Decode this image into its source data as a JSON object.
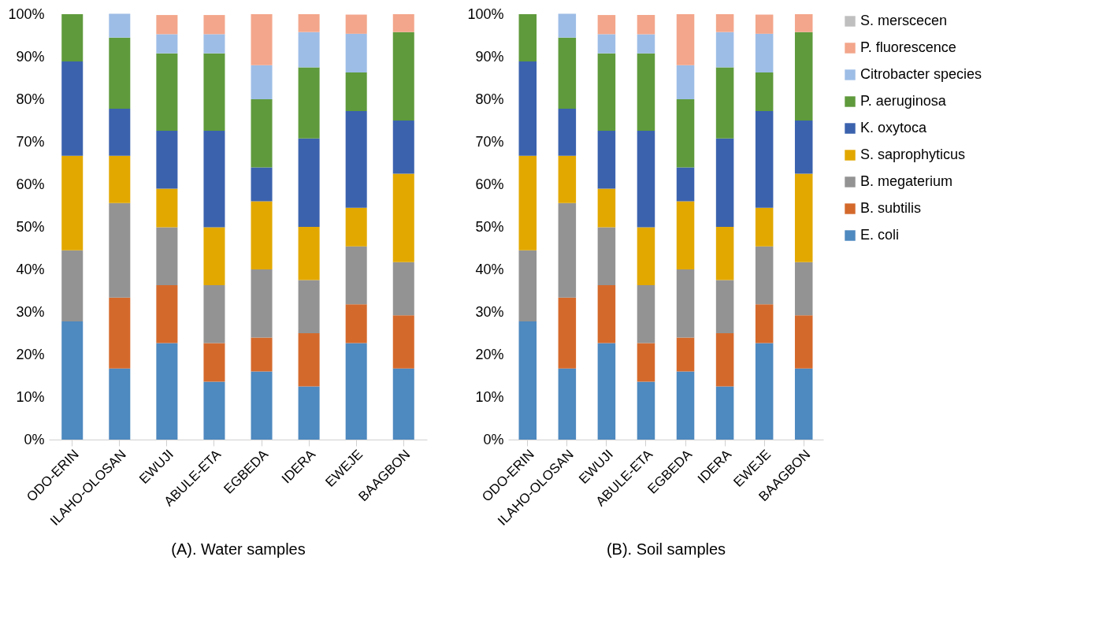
{
  "chart_data": [
    {
      "type": "bar",
      "stacked": true,
      "xlabel": "(A). Water samples",
      "categories": [
        "ODO-ERIN",
        "ILAHO-OLOSAN",
        "EWUJI",
        "ABULE-ETA",
        "EGBEDA",
        "IDERA",
        "EWEJE",
        "BAAGBON"
      ],
      "ylim": [
        0,
        100
      ],
      "yticks": [
        {
          "value": 0,
          "label": "0%"
        },
        {
          "value": 10,
          "label": "10%"
        },
        {
          "value": 20,
          "label": "20%"
        },
        {
          "value": 30,
          "label": "30%"
        },
        {
          "value": 40,
          "label": "40%"
        },
        {
          "value": 50,
          "label": "50%"
        },
        {
          "value": 60,
          "label": "60%"
        },
        {
          "value": 70,
          "label": "70%"
        },
        {
          "value": 80,
          "label": "80%"
        },
        {
          "value": 90,
          "label": "90%"
        },
        {
          "value": 100,
          "label": "100%"
        }
      ],
      "grid": false,
      "legend": false,
      "series": [
        {
          "color": "#4e89bf",
          "values": [
            27.8,
            16.7,
            22.7,
            13.6,
            16,
            12.5,
            22.7,
            16.7
          ]
        },
        {
          "color": "#d4692c",
          "values": [
            0,
            16.7,
            13.6,
            9.1,
            8,
            12.5,
            9.1,
            12.5
          ]
        },
        {
          "color": "#939393",
          "values": [
            16.7,
            22.2,
            13.6,
            13.6,
            16,
            12.5,
            13.6,
            12.5
          ]
        },
        {
          "color": "#e2a800",
          "values": [
            22.2,
            11.1,
            9.1,
            13.6,
            16,
            12.5,
            9.1,
            20.8
          ]
        },
        {
          "color": "#3b62ad",
          "values": [
            22.2,
            11.1,
            13.6,
            22.7,
            8,
            20.8,
            22.7,
            12.5
          ]
        },
        {
          "color": "#5f9a3c",
          "values": [
            11.1,
            16.7,
            18.2,
            18.2,
            16,
            16.7,
            9.1,
            20.8
          ]
        },
        {
          "color": "#9dbde6",
          "values": [
            0,
            5.6,
            4.5,
            4.5,
            8,
            8.3,
            9.1,
            0
          ]
        },
        {
          "color": "#f3a68b",
          "values": [
            0,
            0,
            4.5,
            4.5,
            12,
            4.2,
            4.5,
            4.2
          ]
        },
        {
          "color": "#bfbfbf",
          "values": [
            0,
            0,
            0,
            0,
            0,
            0,
            0,
            0
          ]
        }
      ]
    },
    {
      "type": "bar",
      "stacked": true,
      "xlabel": "(B). Soil samples",
      "categories": [
        "ODO-ERIN",
        "ILAHO-OLOSAN",
        "EWUJI",
        "ABULE-ETA",
        "EGBEDA",
        "IDERA",
        "EWEJE",
        "BAAGBON"
      ],
      "ylim": [
        0,
        100
      ],
      "yticks": [
        {
          "value": 0,
          "label": "0%"
        },
        {
          "value": 10,
          "label": "10%"
        },
        {
          "value": 20,
          "label": "20%"
        },
        {
          "value": 30,
          "label": "30%"
        },
        {
          "value": 40,
          "label": "40%"
        },
        {
          "value": 50,
          "label": "50%"
        },
        {
          "value": 60,
          "label": "60%"
        },
        {
          "value": 70,
          "label": "70%"
        },
        {
          "value": 80,
          "label": "80%"
        },
        {
          "value": 90,
          "label": "90%"
        },
        {
          "value": 100,
          "label": "100%"
        }
      ],
      "grid": false,
      "legend": "right",
      "series": [
        {
          "name": "E. coli",
          "color": "#4e89bf",
          "values": [
            27.8,
            16.7,
            22.7,
            13.6,
            16,
            12.5,
            22.7,
            16.7
          ]
        },
        {
          "name": "B. subtilis",
          "color": "#d4692c",
          "values": [
            0,
            16.7,
            13.6,
            9.1,
            8,
            12.5,
            9.1,
            12.5
          ]
        },
        {
          "name": "B. megaterium",
          "color": "#939393",
          "values": [
            16.7,
            22.2,
            13.6,
            13.6,
            16,
            12.5,
            13.6,
            12.5
          ]
        },
        {
          "name": "S. saprophyticus",
          "color": "#e2a800",
          "values": [
            22.2,
            11.1,
            9.1,
            13.6,
            16,
            12.5,
            9.1,
            20.8
          ]
        },
        {
          "name": "K. oxytoca",
          "color": "#3b62ad",
          "values": [
            22.2,
            11.1,
            13.6,
            22.7,
            8,
            20.8,
            22.7,
            12.5
          ]
        },
        {
          "name": "P. aeruginosa",
          "color": "#5f9a3c",
          "values": [
            11.1,
            16.7,
            18.2,
            18.2,
            16,
            16.7,
            9.1,
            20.8
          ]
        },
        {
          "name": "Citrobacter species",
          "color": "#9dbde6",
          "values": [
            0,
            5.6,
            4.5,
            4.5,
            8,
            8.3,
            9.1,
            0
          ]
        },
        {
          "name": "P. fluorescence",
          "color": "#f3a68b",
          "values": [
            0,
            0,
            4.5,
            4.5,
            12,
            4.2,
            4.5,
            4.2
          ]
        },
        {
          "name": "S. merscecen",
          "color": "#bfbfbf",
          "values": [
            0,
            0,
            0,
            0,
            0,
            0,
            0,
            0
          ]
        }
      ]
    }
  ]
}
